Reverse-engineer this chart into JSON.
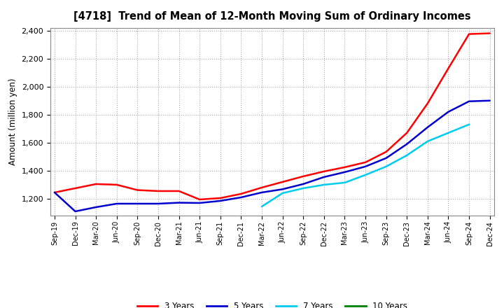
{
  "title": "[4718]  Trend of Mean of 12-Month Moving Sum of Ordinary Incomes",
  "ylabel": "Amount (million yen)",
  "ylim": [
    1080,
    2420
  ],
  "yticks": [
    1200,
    1400,
    1600,
    1800,
    2000,
    2200,
    2400
  ],
  "background_color": "#ffffff",
  "grid_color": "#999999",
  "x_labels": [
    "Sep-19",
    "Dec-19",
    "Mar-20",
    "Jun-20",
    "Sep-20",
    "Dec-20",
    "Mar-21",
    "Jun-21",
    "Sep-21",
    "Dec-21",
    "Mar-22",
    "Jun-22",
    "Sep-22",
    "Dec-22",
    "Mar-23",
    "Jun-23",
    "Sep-23",
    "Dec-23",
    "Mar-24",
    "Jun-24",
    "Sep-24",
    "Dec-24"
  ],
  "series": {
    "3 Years": {
      "color": "#ff0000",
      "data_x": [
        0,
        1,
        2,
        3,
        4,
        5,
        6,
        7,
        8,
        9,
        10,
        11,
        12,
        13,
        14,
        15,
        16,
        17,
        18,
        19,
        20,
        21
      ],
      "data_y": [
        1245,
        1275,
        1305,
        1300,
        1262,
        1255,
        1255,
        1195,
        1205,
        1235,
        1280,
        1320,
        1360,
        1395,
        1425,
        1460,
        1535,
        1670,
        1880,
        2130,
        2375,
        2380
      ]
    },
    "5 Years": {
      "color": "#0000cc",
      "data_x": [
        0,
        1,
        2,
        3,
        4,
        5,
        6,
        7,
        8,
        9,
        10,
        11,
        12,
        13,
        14,
        15,
        16,
        17,
        18,
        19,
        20,
        21
      ],
      "data_y": [
        1245,
        1110,
        1140,
        1165,
        1165,
        1165,
        1172,
        1170,
        1185,
        1210,
        1245,
        1268,
        1305,
        1355,
        1390,
        1430,
        1490,
        1590,
        1710,
        1820,
        1895,
        1900
      ]
    },
    "7 Years": {
      "color": "#00ccee",
      "data_x": [
        10,
        11,
        12,
        13,
        14,
        15,
        16,
        17,
        18,
        19,
        20
      ],
      "data_y": [
        1145,
        1240,
        1275,
        1300,
        1315,
        1370,
        1430,
        1510,
        1610,
        1670,
        1730
      ]
    },
    "10 Years": {
      "color": "#008000",
      "data_x": [],
      "data_y": []
    }
  },
  "legend_labels": [
    "3 Years",
    "5 Years",
    "7 Years",
    "10 Years"
  ],
  "legend_colors": [
    "#ff0000",
    "#0000cc",
    "#00ccee",
    "#008000"
  ]
}
